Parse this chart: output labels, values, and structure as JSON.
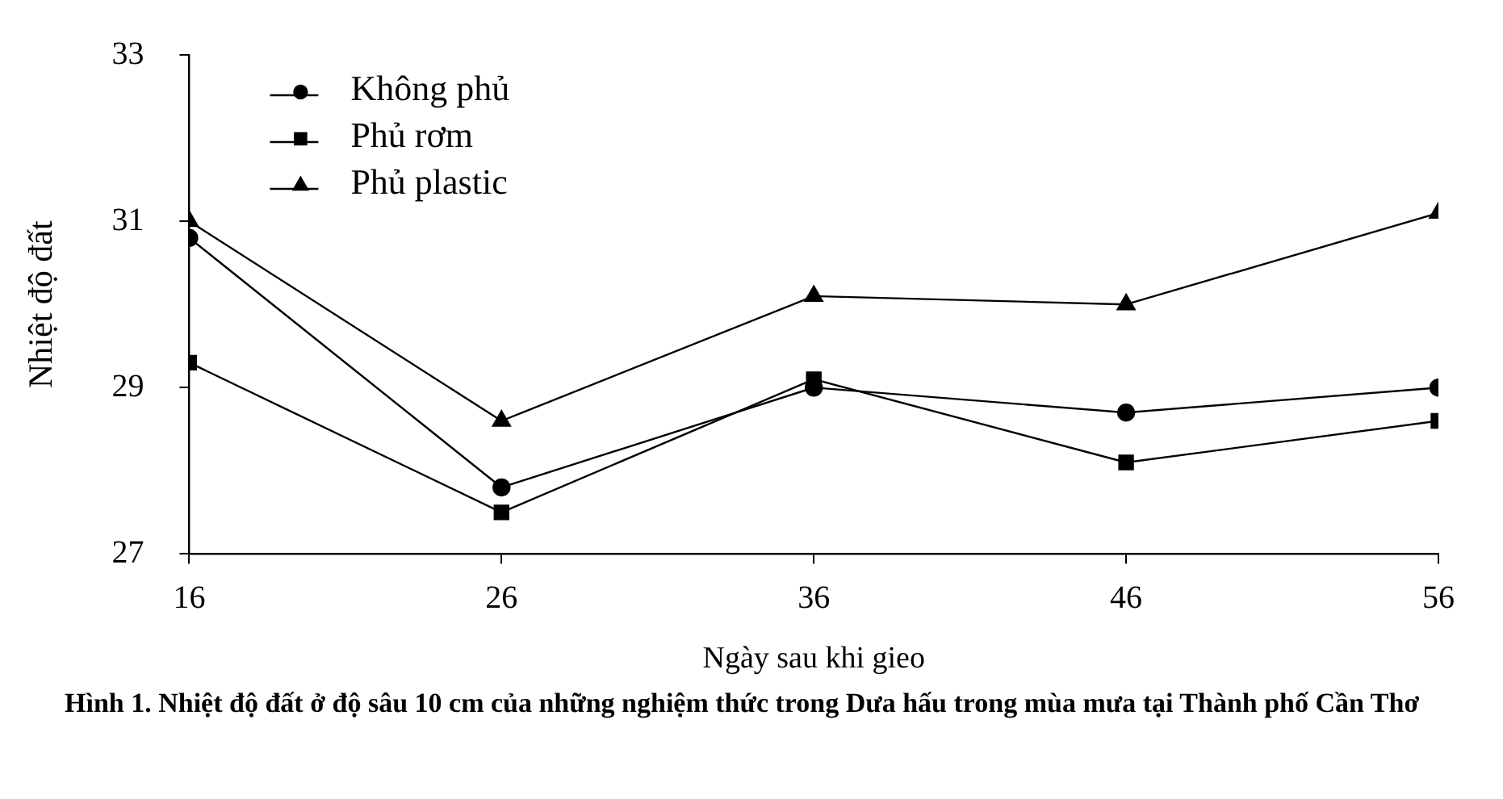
{
  "chart_data": {
    "type": "line",
    "xlabel": "Ngày sau khi gieo",
    "ylabel": "Nhiệt độ đất",
    "x": [
      16,
      26,
      36,
      46,
      56
    ],
    "xlim": [
      16,
      56
    ],
    "xticks": [
      16,
      26,
      36,
      46,
      56
    ],
    "ylim": [
      27,
      33
    ],
    "yticks": [
      27,
      29,
      31,
      33
    ],
    "grid": false,
    "legend": "top left",
    "line_style": "solid",
    "series": [
      {
        "name": "Không phủ",
        "color": "#000000",
        "marker": "circle",
        "values": [
          30.8,
          27.8,
          29.0,
          28.7,
          29.0
        ]
      },
      {
        "name": "Phủ rơm",
        "color": "#000000",
        "marker": "square",
        "values": [
          29.3,
          27.5,
          29.1,
          28.1,
          28.6
        ]
      },
      {
        "name": "Phủ plastic",
        "color": "#000000",
        "marker": "triangle",
        "values": [
          31.0,
          28.6,
          30.1,
          30.0,
          31.1
        ]
      }
    ],
    "annotations": [
      "Hình 1. Nhiệt độ đất ở độ sâu 10 cm của những nghiệm thức trong Dưa hấu trong mùa mưa tại Thành phố Cần Thơ"
    ]
  }
}
